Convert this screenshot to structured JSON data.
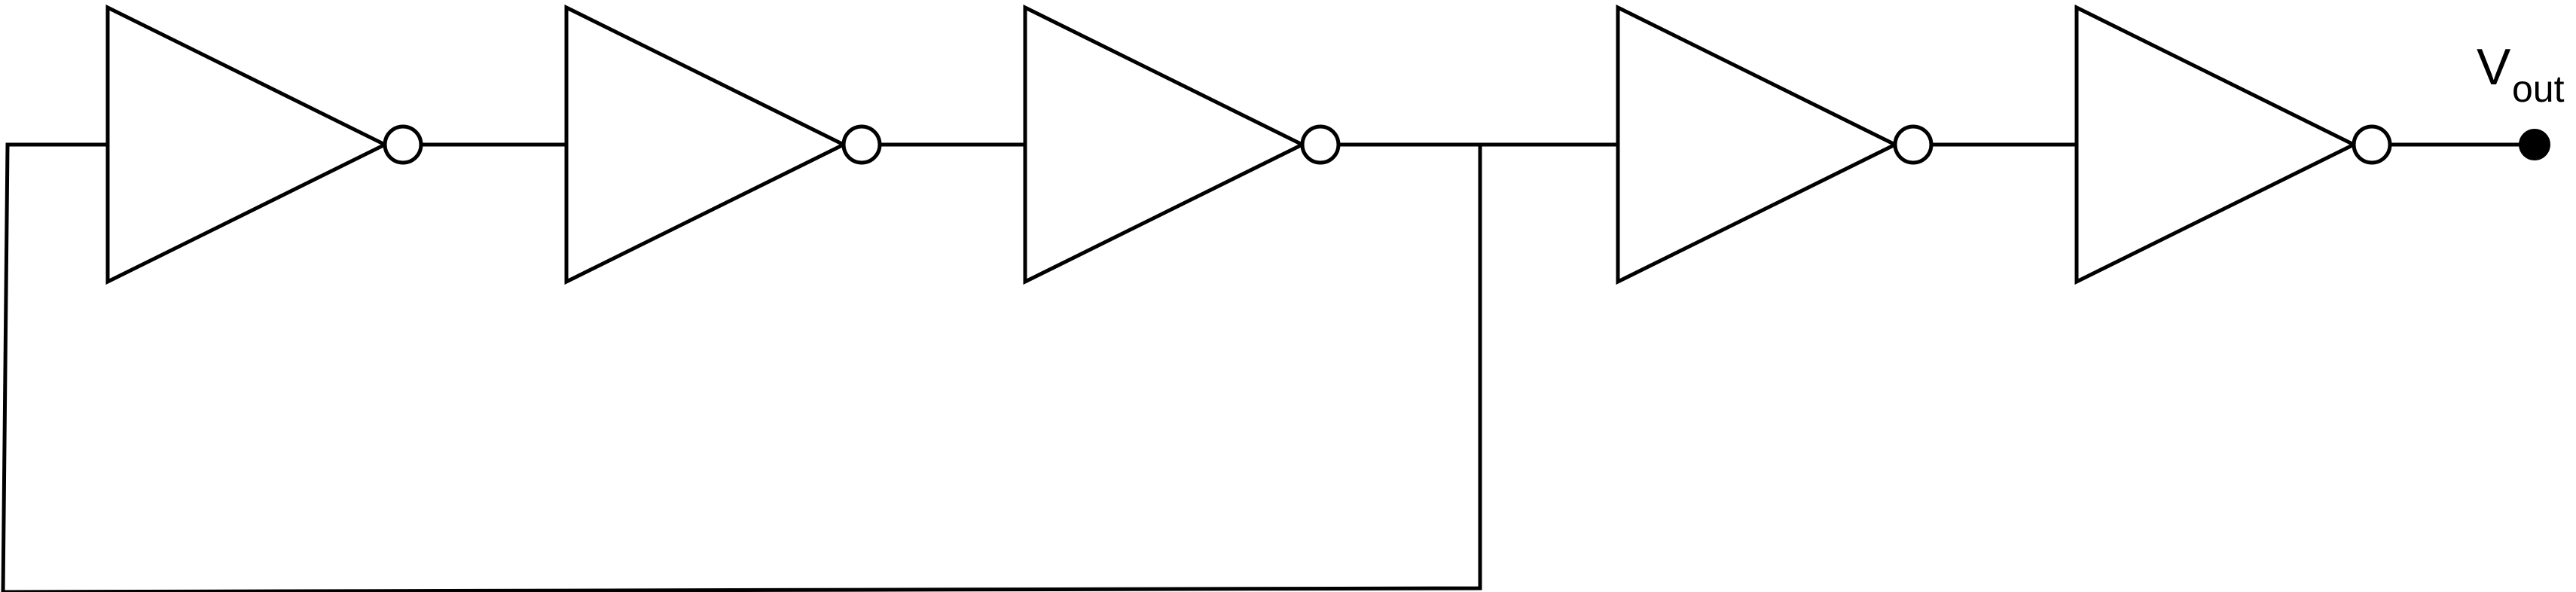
{
  "diagram": {
    "description_type": "circuit",
    "components": [
      {
        "id": "inv1",
        "type": "inverter"
      },
      {
        "id": "inv2",
        "type": "inverter"
      },
      {
        "id": "inv3",
        "type": "inverter"
      },
      {
        "id": "inv4",
        "type": "inverter"
      },
      {
        "id": "inv5",
        "type": "inverter"
      }
    ],
    "connections": [
      {
        "from": "inv1",
        "to": "inv2"
      },
      {
        "from": "inv2",
        "to": "inv3"
      },
      {
        "from": "inv3",
        "to": "inv4"
      },
      {
        "from": "inv4",
        "to": "inv5"
      },
      {
        "from": "inv3",
        "to": "inv1",
        "kind": "feedback"
      },
      {
        "from": "inv5",
        "to": "vout"
      }
    ],
    "output_label": {
      "main": "V",
      "subscript": "out"
    },
    "colors": {
      "stroke": "#000000",
      "background": "#ffffff",
      "terminal_fill": "#000000"
    }
  }
}
